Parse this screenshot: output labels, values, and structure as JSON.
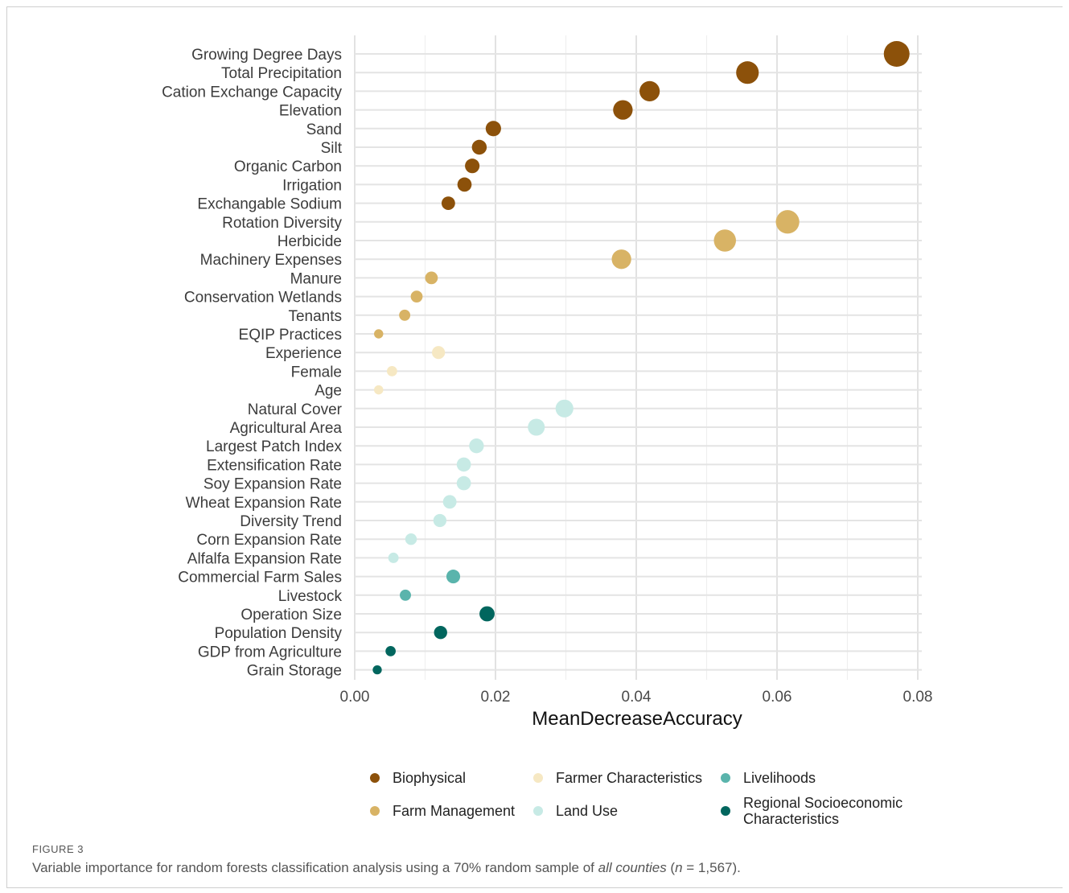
{
  "chart_data": {
    "type": "scatter",
    "xlabel": "MeanDecreaseAccuracy",
    "xlim": [
      0,
      0.08
    ],
    "xticks": [
      "0.00",
      "0.02",
      "0.04",
      "0.06",
      "0.08"
    ],
    "xtick_values": [
      0,
      0.02,
      0.04,
      0.06,
      0.08
    ],
    "grid": true,
    "legend_position": "bottom",
    "categories": [
      "Growing Degree Days",
      "Total Precipitation",
      "Cation Exchange Capacity",
      "Elevation",
      "Sand",
      "Silt",
      "Organic Carbon",
      "Irrigation",
      "Exchangable Sodium",
      "Rotation Diversity",
      "Herbicide",
      "Machinery Expenses",
      "Manure",
      "Conservation Wetlands",
      "Tenants",
      "EQIP Practices",
      "Experience",
      "Female",
      "Age",
      "Natural Cover",
      "Agricultural Area",
      "Largest Patch Index",
      "Extensification Rate",
      "Soy Expansion Rate",
      "Wheat Expansion Rate",
      "Diversity Trend",
      "Corn Expansion Rate",
      "Alfalfa Expansion Rate",
      "Commercial Farm Sales",
      "Livestock",
      "Operation Size",
      "Population Density",
      "GDP from Agriculture",
      "Grain Storage"
    ],
    "values": [
      0.077,
      0.0558,
      0.0419,
      0.0381,
      0.0197,
      0.0177,
      0.0167,
      0.0156,
      0.0133,
      0.0615,
      0.0526,
      0.0379,
      0.0109,
      0.0088,
      0.0071,
      0.0034,
      0.0119,
      0.0053,
      0.0034,
      0.0298,
      0.0258,
      0.0173,
      0.0155,
      0.0155,
      0.0135,
      0.0121,
      0.008,
      0.0055,
      0.014,
      0.0072,
      0.0188,
      0.0122,
      0.0051,
      0.0032
    ],
    "groups": [
      "Biophysical",
      "Biophysical",
      "Biophysical",
      "Biophysical",
      "Biophysical",
      "Biophysical",
      "Biophysical",
      "Biophysical",
      "Biophysical",
      "Farm Management",
      "Farm Management",
      "Farm Management",
      "Farm Management",
      "Farm Management",
      "Farm Management",
      "Farm Management",
      "Farmer Characteristics",
      "Farmer Characteristics",
      "Farmer Characteristics",
      "Land Use",
      "Land Use",
      "Land Use",
      "Land Use",
      "Land Use",
      "Land Use",
      "Land Use",
      "Land Use",
      "Land Use",
      "Livelihoods",
      "Livelihoods",
      "Regional Socioeconomic Characteristics",
      "Regional Socioeconomic Characteristics",
      "Regional Socioeconomic Characteristics",
      "Regional Socioeconomic Characteristics"
    ],
    "legend": [
      {
        "name": "Biophysical",
        "color": "#8c510a"
      },
      {
        "name": "Farmer Characteristics",
        "color": "#f6e8c3"
      },
      {
        "name": "Livelihoods",
        "color": "#5ab4ac"
      },
      {
        "name": "Farm Management",
        "color": "#d8b365"
      },
      {
        "name": "Land Use",
        "color": "#c7eae5"
      },
      {
        "name": "Regional Socioeconomic Characteristics",
        "lines": [
          "Regional Socioeconomic",
          "Characteristics"
        ],
        "color": "#01665e"
      }
    ]
  },
  "caption": {
    "label": "FIGURE 3",
    "text_before": "Variable importance for random forests classification analysis using a 70% random sample of ",
    "text_italic": "all counties",
    "text_paren_open": " (",
    "text_n": "n",
    "text_after": " = 1,567)."
  }
}
